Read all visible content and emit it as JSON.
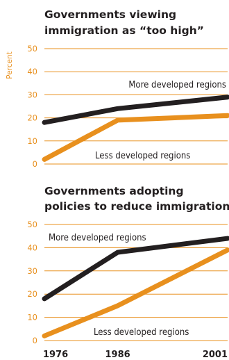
{
  "colors": {
    "accent": "#e8901e",
    "dark": "#231f20",
    "gridline": "#e8901e"
  },
  "chart_data": [
    {
      "type": "line",
      "title_lines": [
        "Governments viewing",
        "immigration as “too high”"
      ],
      "ylabel": "Percent",
      "xlabel": "",
      "ylim": [
        0,
        50
      ],
      "yticks": [
        0,
        10,
        20,
        30,
        40,
        50
      ],
      "x": [
        1976,
        1986,
        2001
      ],
      "xticks_shown": false,
      "grid": true,
      "series": [
        {
          "name": "More developed regions",
          "color": "#231f20",
          "values": [
            18,
            24,
            29
          ]
        },
        {
          "name": "Less developed regions",
          "color": "#e8901e",
          "values": [
            2,
            19,
            21
          ]
        }
      ]
    },
    {
      "type": "line",
      "title_lines": [
        "Governments adopting",
        "policies to reduce immigration"
      ],
      "ylabel": "",
      "xlabel": "",
      "ylim": [
        0,
        50
      ],
      "yticks": [
        0,
        10,
        20,
        30,
        40,
        50
      ],
      "x": [
        1976,
        1986,
        2001
      ],
      "xticks_shown": true,
      "grid": true,
      "series": [
        {
          "name": "More developed regions",
          "color": "#231f20",
          "values": [
            18,
            38,
            44
          ]
        },
        {
          "name": "Less developed regions",
          "color": "#e8901e",
          "values": [
            2,
            15,
            39
          ]
        }
      ]
    }
  ]
}
